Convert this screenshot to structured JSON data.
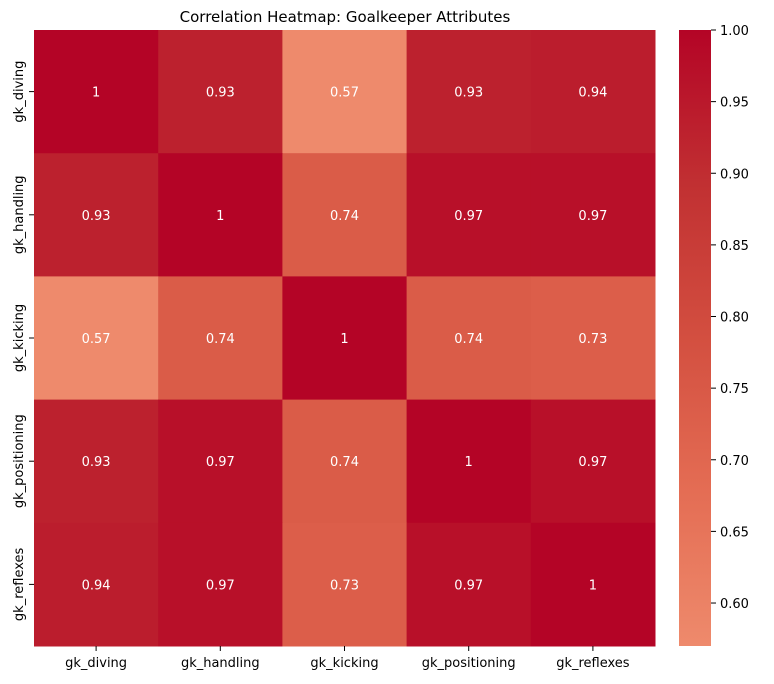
{
  "chart_data": {
    "type": "heatmap",
    "title": "Correlation Heatmap: Goalkeeper Attributes",
    "xlabel": "",
    "ylabel": "",
    "x_categories": [
      "gk_diving",
      "gk_handling",
      "gk_kicking",
      "gk_positioning",
      "gk_reflexes"
    ],
    "y_categories": [
      "gk_diving",
      "gk_handling",
      "gk_kicking",
      "gk_positioning",
      "gk_reflexes"
    ],
    "values": [
      [
        1,
        0.93,
        0.57,
        0.93,
        0.94
      ],
      [
        0.93,
        1,
        0.74,
        0.97,
        0.97
      ],
      [
        0.57,
        0.74,
        1,
        0.74,
        0.73
      ],
      [
        0.93,
        0.97,
        0.74,
        1,
        0.97
      ],
      [
        0.94,
        0.97,
        0.73,
        0.97,
        1
      ]
    ],
    "annotations": [
      [
        "1",
        "0.93",
        "0.57",
        "0.93",
        "0.94"
      ],
      [
        "0.93",
        "1",
        "0.74",
        "0.97",
        "0.97"
      ],
      [
        "0.57",
        "0.74",
        "1",
        "0.74",
        "0.73"
      ],
      [
        "0.93",
        "0.97",
        "0.74",
        "1",
        "0.97"
      ],
      [
        "0.94",
        "0.97",
        "0.73",
        "0.97",
        "1"
      ]
    ],
    "colorbar": {
      "vmin": 0.57,
      "vmax": 1.0,
      "ticks": [
        "0.60",
        "0.65",
        "0.70",
        "0.75",
        "0.80",
        "0.85",
        "0.90",
        "0.95",
        "1.00"
      ],
      "colormap": "coolwarm (upper half)",
      "color_low": "#ee8a6c",
      "color_high": "#b40426"
    },
    "grid": false,
    "legend": "colorbar-right"
  }
}
